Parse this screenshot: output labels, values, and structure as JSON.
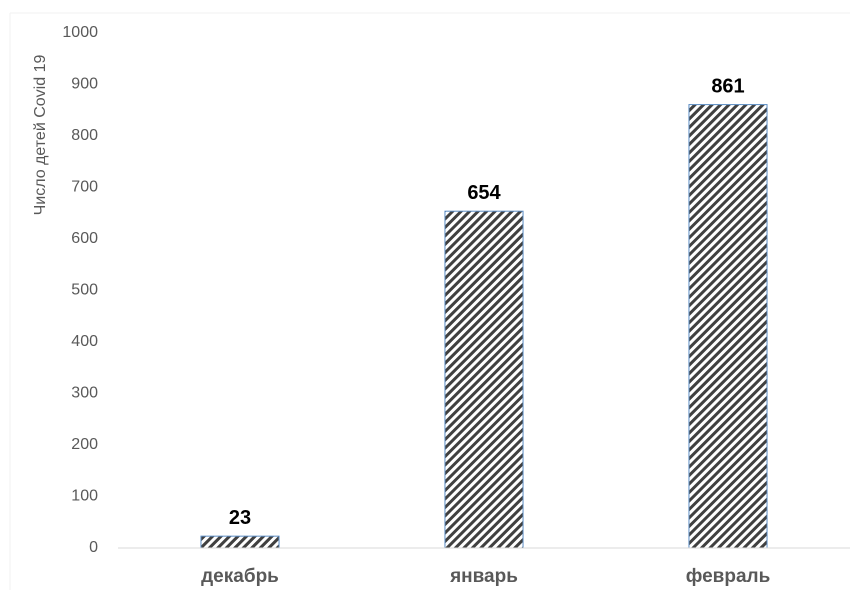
{
  "chart_data": {
    "type": "bar",
    "title": "",
    "xlabel": "",
    "ylabel": "Число детей Covid 19",
    "categories": [
      "декабрь",
      "январь",
      "февраль"
    ],
    "values": [
      23,
      654,
      861
    ],
    "data_labels": [
      "23",
      "654",
      "861"
    ],
    "ylim": [
      0,
      1000
    ],
    "yticks": [
      0,
      100,
      200,
      300,
      400,
      500,
      600,
      700,
      800,
      900,
      1000
    ],
    "ytick_labels": [
      "0",
      "100",
      "200",
      "300",
      "400",
      "500",
      "600",
      "700",
      "800",
      "900",
      "1000"
    ],
    "grid": false,
    "legend": "none",
    "bar_fill": "diagonal-hatch",
    "colors": {
      "hatch": "#404040",
      "bar_outline": "#5b8cc4",
      "axis_text": "#595959",
      "data_label": "#000000",
      "axis_line": "#d9d9d9"
    }
  }
}
